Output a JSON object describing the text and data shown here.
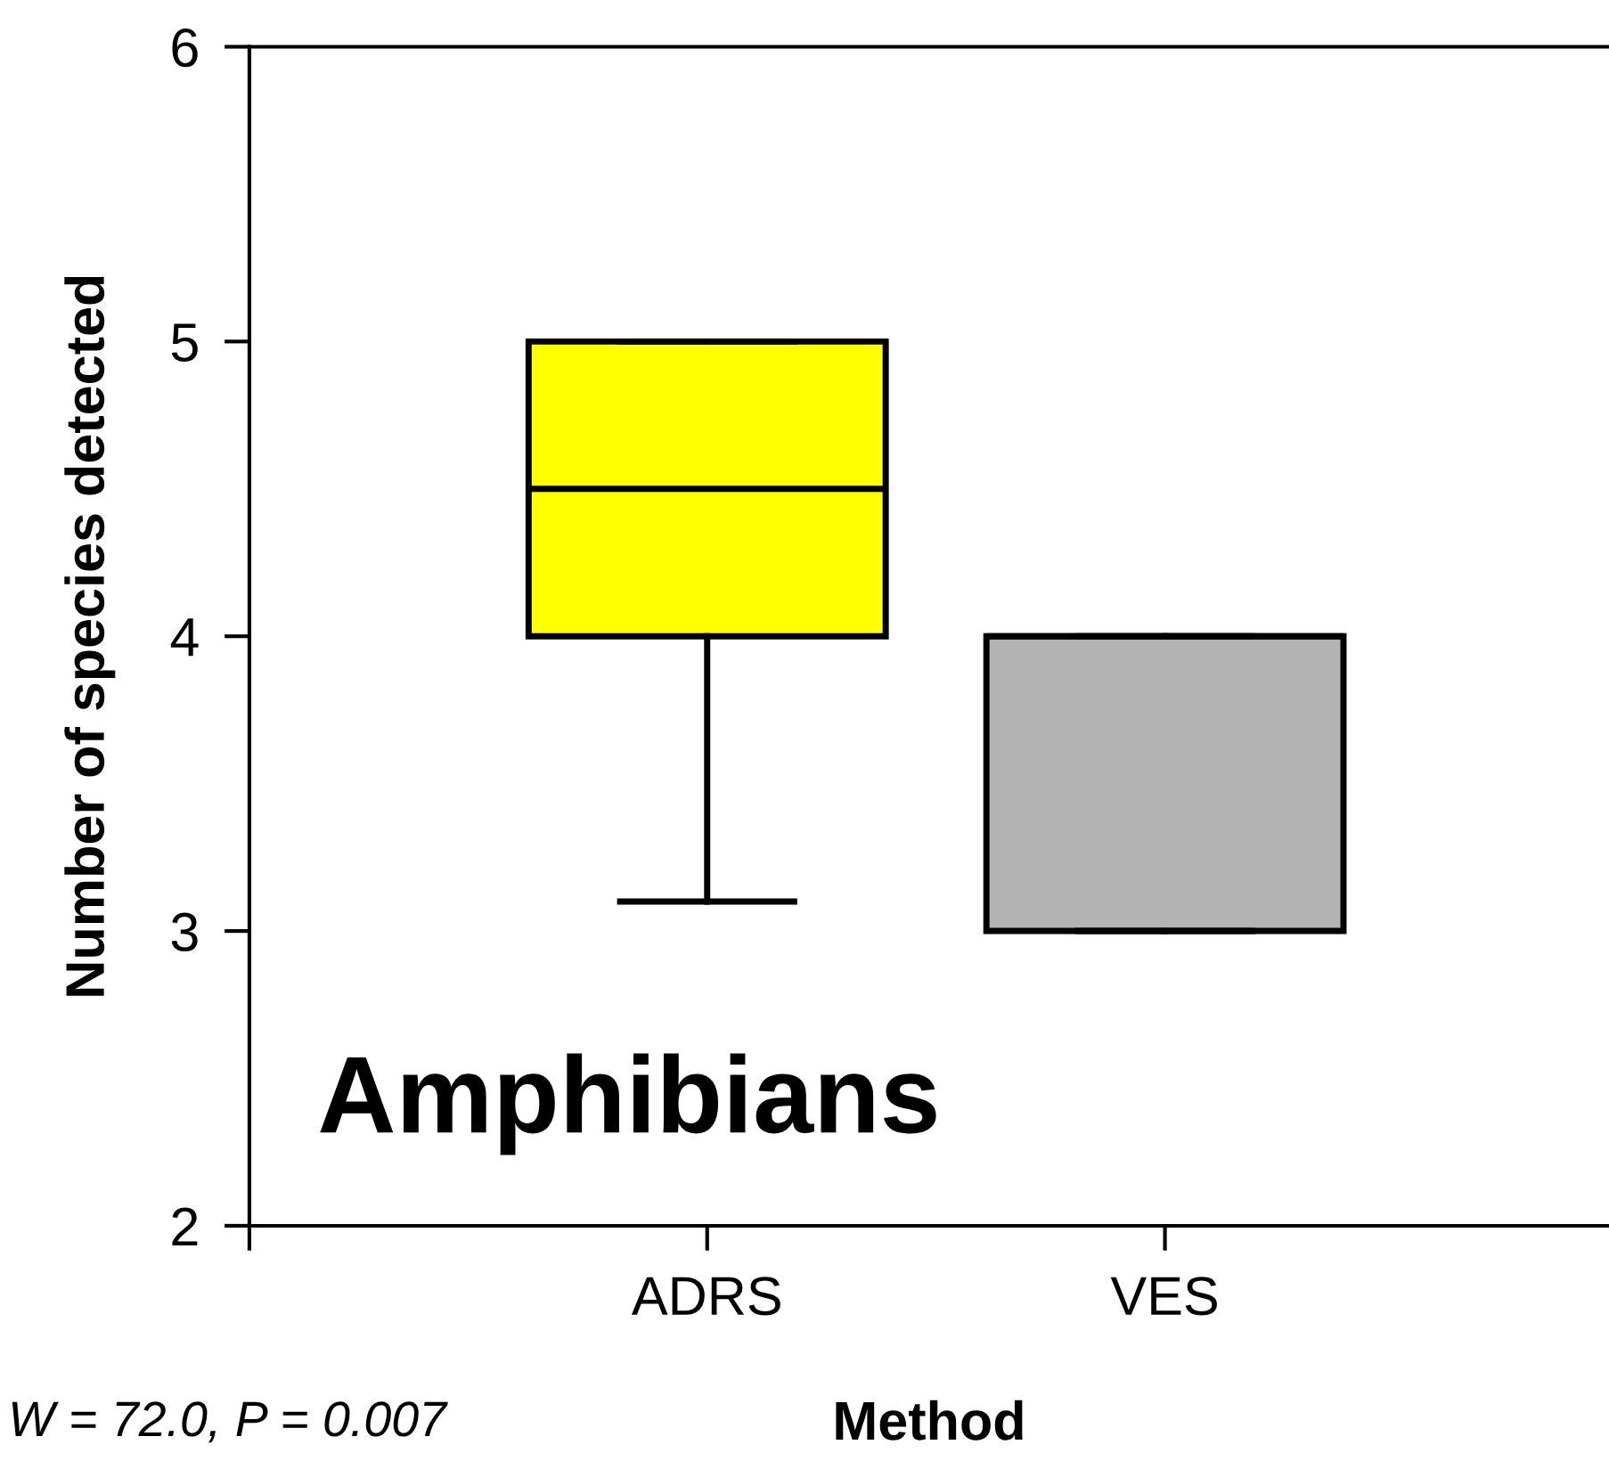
{
  "chart_data": {
    "type": "box",
    "xlabel": "Method",
    "ylabel": "Number of species detected",
    "categories": [
      "ADRS",
      "VES"
    ],
    "series": [
      {
        "color": "#ffff00",
        "boxes": [
          {
            "low": 3.1,
            "q1": 4,
            "median": 4.5,
            "q3": 5,
            "high": 5
          },
          null
        ]
      },
      {
        "color": "#b3b3b3",
        "boxes": [
          null,
          {
            "low": 3,
            "q1": 3,
            "median": 4,
            "q3": 4,
            "high": 4
          }
        ]
      }
    ],
    "ylim": [
      2,
      6
    ],
    "yticks": [
      2,
      3,
      4,
      5,
      6
    ],
    "grid": false,
    "legend": false,
    "annotations": [
      "Amphibians",
      "W = 72.0, P = 0.007"
    ]
  }
}
